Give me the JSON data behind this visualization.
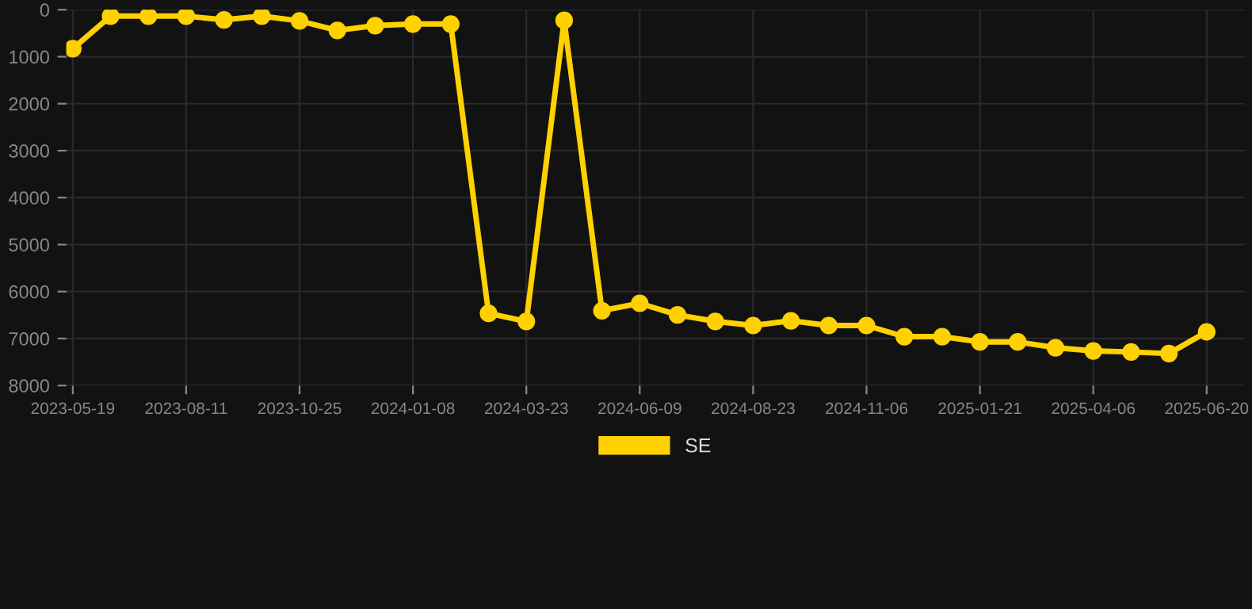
{
  "chart_data": {
    "type": "line",
    "categories": [
      "2023-05-19",
      null,
      null,
      "2023-08-11",
      null,
      null,
      "2023-10-25",
      null,
      null,
      "2024-01-08",
      null,
      null,
      "2024-03-23",
      null,
      null,
      "2024-06-09",
      null,
      null,
      "2024-08-23",
      null,
      null,
      "2024-11-06",
      null,
      null,
      "2025-01-21",
      null,
      null,
      "2025-04-06",
      null,
      null,
      "2025-06-20"
    ],
    "series": [
      {
        "name": "SE",
        "color": "#ffd100",
        "values": [
          830,
          135,
          135,
          135,
          215,
          135,
          237,
          440,
          338,
          304,
          304,
          6465,
          6635,
          226,
          6407,
          6250,
          6497,
          6635,
          6723,
          6622,
          6723,
          6723,
          6960,
          6960,
          7072,
          7072,
          7196,
          7264,
          7286,
          7320,
          6858
        ]
      }
    ],
    "ylim": [
      8000,
      0
    ],
    "yticks": [
      0,
      1000,
      2000,
      3000,
      4000,
      5000,
      6000,
      7000,
      8000
    ],
    "grid": true,
    "legend": "bottom",
    "marker": "circle",
    "line_style": "solid"
  }
}
